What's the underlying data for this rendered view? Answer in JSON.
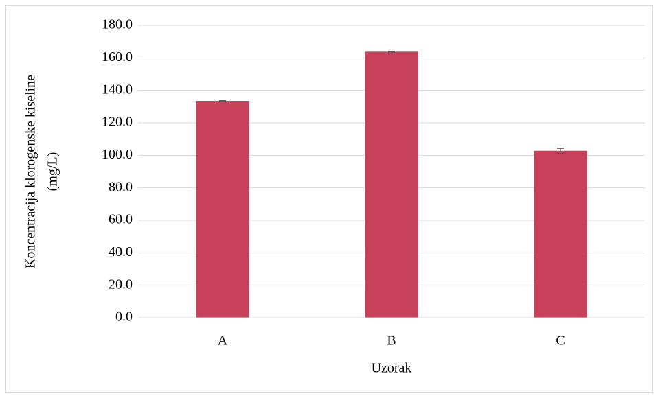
{
  "chart_data": {
    "type": "bar",
    "categories": [
      "A",
      "B",
      "C"
    ],
    "values": [
      133.5,
      163.8,
      102.8
    ],
    "errors": [
      0.3,
      0.2,
      1.5
    ],
    "color": "#c8415a",
    "x_label": "Uzorak",
    "y_label": [
      "Koncentracija klorogenske kiseline",
      "(mg/L)"
    ],
    "ylim": [
      0,
      180
    ],
    "yticks": [
      {
        "value": 0,
        "label": "0.0"
      },
      {
        "value": 20,
        "label": "20.0"
      },
      {
        "value": 40,
        "label": "40.0"
      },
      {
        "value": 60,
        "label": "60.0"
      },
      {
        "value": 80,
        "label": "80.0"
      },
      {
        "value": 100,
        "label": "100.0"
      },
      {
        "value": 120,
        "label": "120.0"
      },
      {
        "value": 140,
        "label": "140.0"
      },
      {
        "value": 160,
        "label": "160.0"
      },
      {
        "value": 180,
        "label": "180.0"
      }
    ],
    "grid": true
  }
}
